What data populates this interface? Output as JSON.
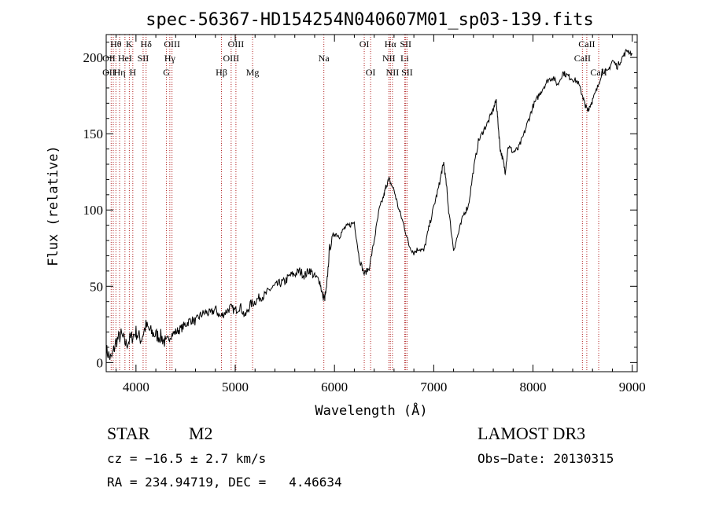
{
  "chart_data": {
    "type": "line",
    "title": "spec-56367-HD154254N040607M01_sp03-139.fits",
    "xlabel": "Wavelength (Å)",
    "ylabel": "Flux (relative)",
    "xlim": [
      3700,
      9050
    ],
    "ylim": [
      -6,
      215
    ],
    "xticks": [
      4000,
      5000,
      6000,
      7000,
      8000,
      9000
    ],
    "yticks": [
      0,
      50,
      100,
      150,
      200
    ],
    "series": [
      {
        "name": "flux",
        "x": [
          3700,
          3750,
          3800,
          3850,
          3900,
          3950,
          4000,
          4050,
          4100,
          4150,
          4200,
          4250,
          4300,
          4350,
          4400,
          4450,
          4500,
          4550,
          4600,
          4650,
          4700,
          4750,
          4800,
          4850,
          4900,
          4950,
          5000,
          5050,
          5100,
          5150,
          5200,
          5250,
          5300,
          5350,
          5400,
          5450,
          5500,
          5550,
          5600,
          5650,
          5700,
          5750,
          5800,
          5850,
          5880,
          5900,
          5920,
          5950,
          6000,
          6050,
          6100,
          6150,
          6200,
          6250,
          6300,
          6350,
          6400,
          6450,
          6500,
          6520,
          6550,
          6600,
          6650,
          6700,
          6750,
          6800,
          6850,
          6900,
          6950,
          7000,
          7050,
          7080,
          7100,
          7130,
          7150,
          7200,
          7250,
          7300,
          7350,
          7400,
          7450,
          7500,
          7550,
          7600,
          7630,
          7650,
          7670,
          7700,
          7720,
          7750,
          7800,
          7850,
          7900,
          7950,
          8000,
          8050,
          8100,
          8150,
          8200,
          8250,
          8300,
          8350,
          8400,
          8450,
          8500,
          8520,
          8550,
          8570,
          8600,
          8650,
          8700,
          8750,
          8800,
          8850,
          8900,
          8950,
          9000
        ],
        "values": [
          8,
          2,
          14,
          18,
          12,
          16,
          20,
          15,
          24,
          20,
          18,
          17,
          13,
          18,
          20,
          22,
          25,
          28,
          27,
          31,
          33,
          32,
          35,
          30,
          33,
          36,
          34,
          37,
          30,
          38,
          40,
          43,
          44,
          48,
          50,
          52,
          53,
          57,
          58,
          60,
          57,
          61,
          56,
          54,
          44,
          42,
          48,
          75,
          85,
          83,
          88,
          90,
          92,
          68,
          58,
          62,
          80,
          100,
          110,
          116,
          120,
          113,
          100,
          90,
          77,
          72,
          75,
          73,
          88,
          102,
          115,
          125,
          131,
          115,
          100,
          74,
          85,
          97,
          103,
          126,
          145,
          152,
          158,
          166,
          172,
          155,
          140,
          132,
          125,
          142,
          138,
          140,
          148,
          158,
          168,
          174,
          180,
          185,
          187,
          182,
          190,
          188,
          186,
          184,
          175,
          170,
          165,
          168,
          172,
          180,
          192,
          190,
          198,
          194,
          200,
          205,
          202
        ]
      }
    ],
    "line_markers": [
      3750,
      3771,
      3798,
      3835,
      3889,
      3933,
      3968,
      4102,
      4072,
      4307,
      4341,
      4363,
      4861,
      4959,
      5007,
      5175,
      5893,
      6300,
      6364,
      6548,
      6563,
      6584,
      6707,
      6717,
      6731,
      8498,
      8542,
      8662
    ],
    "line_labels": [
      {
        "text": "Hθ",
        "w": 3798,
        "row": 0
      },
      {
        "text": "K",
        "w": 3933,
        "row": 0
      },
      {
        "text": "Hδ",
        "w": 4102,
        "row": 0
      },
      {
        "text": "OII",
        "w": 3727,
        "row": 1
      },
      {
        "text": "HeI",
        "w": 3889,
        "row": 1
      },
      {
        "text": "SII",
        "w": 4072,
        "row": 1
      },
      {
        "text": "OII",
        "w": 3727,
        "row": 2
      },
      {
        "text": "Hη",
        "w": 3835,
        "row": 2
      },
      {
        "text": "H",
        "w": 3968,
        "row": 2
      },
      {
        "text": "OIII",
        "w": 4363,
        "row": 0
      },
      {
        "text": "Hγ",
        "w": 4341,
        "row": 1
      },
      {
        "text": "G",
        "w": 4307,
        "row": 2
      },
      {
        "text": "OIII",
        "w": 5007,
        "row": 0
      },
      {
        "text": "OIII",
        "w": 4959,
        "row": 1
      },
      {
        "text": "Hβ",
        "w": 4861,
        "row": 2
      },
      {
        "text": "Mg",
        "w": 5175,
        "row": 2
      },
      {
        "text": "Na",
        "w": 5893,
        "row": 1
      },
      {
        "text": "OI",
        "w": 6300,
        "row": 0
      },
      {
        "text": "OI",
        "w": 6364,
        "row": 2
      },
      {
        "text": "Hα",
        "w": 6563,
        "row": 0
      },
      {
        "text": "SII",
        "w": 6717,
        "row": 0
      },
      {
        "text": "NII",
        "w": 6548,
        "row": 1
      },
      {
        "text": "Li",
        "w": 6707,
        "row": 1
      },
      {
        "text": "NII",
        "w": 6584,
        "row": 2
      },
      {
        "text": "SII",
        "w": 6731,
        "row": 2
      },
      {
        "text": "CaII",
        "w": 8542,
        "row": 0
      },
      {
        "text": "CaII",
        "w": 8498,
        "row": 1
      },
      {
        "text": "CaII",
        "w": 8662,
        "row": 2
      }
    ]
  },
  "info": {
    "object_class": "STAR",
    "subclass": "M2",
    "survey": "LAMOST DR3",
    "cz": "cz = −16.5 ± 2.7 km/s",
    "obs_date": "Obs−Date: 20130315",
    "coords": "RA = 234.94719, DEC =   4.46634"
  },
  "colors": {
    "spectrum": "#000000",
    "marker": "#b22222",
    "axes": "#000000"
  }
}
